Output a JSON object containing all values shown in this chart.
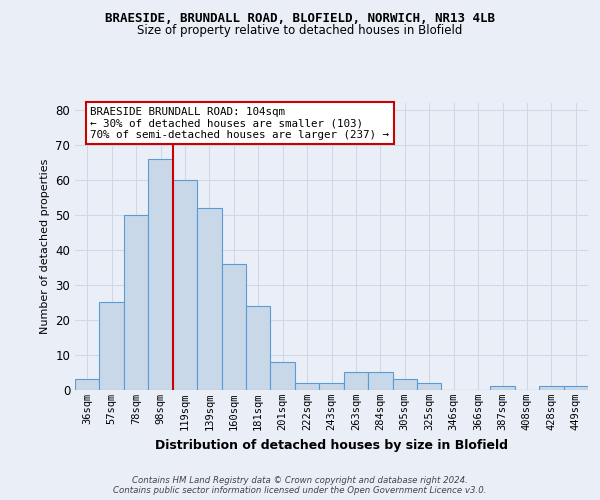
{
  "title_line1": "BRAESIDE, BRUNDALL ROAD, BLOFIELD, NORWICH, NR13 4LB",
  "title_line2": "Size of property relative to detached houses in Blofield",
  "xlabel": "Distribution of detached houses by size in Blofield",
  "ylabel": "Number of detached properties",
  "categories": [
    "36sqm",
    "57sqm",
    "78sqm",
    "98sqm",
    "119sqm",
    "139sqm",
    "160sqm",
    "181sqm",
    "201sqm",
    "222sqm",
    "243sqm",
    "263sqm",
    "284sqm",
    "305sqm",
    "325sqm",
    "346sqm",
    "366sqm",
    "387sqm",
    "408sqm",
    "428sqm",
    "449sqm"
  ],
  "values": [
    3,
    25,
    50,
    66,
    60,
    52,
    36,
    24,
    8,
    2,
    2,
    5,
    5,
    3,
    2,
    0,
    0,
    1,
    0,
    1,
    1
  ],
  "bar_color": "#c8d8e8",
  "bar_edge_color": "#5b9bd5",
  "vline_x": 3.5,
  "vline_color": "#cc0000",
  "annotation_text": "BRAESIDE BRUNDALL ROAD: 104sqm\n← 30% of detached houses are smaller (103)\n70% of semi-detached houses are larger (237) →",
  "annotation_box_color": "#ffffff",
  "annotation_box_edgecolor": "#cc0000",
  "ylim": [
    0,
    82
  ],
  "yticks": [
    0,
    10,
    20,
    30,
    40,
    50,
    60,
    70,
    80
  ],
  "grid_color": "#d0d8e8",
  "footer_line1": "Contains HM Land Registry data © Crown copyright and database right 2024.",
  "footer_line2": "Contains public sector information licensed under the Open Government Licence v3.0.",
  "bg_color": "#eaeff7",
  "plot_bg_color": "#eaeff7"
}
